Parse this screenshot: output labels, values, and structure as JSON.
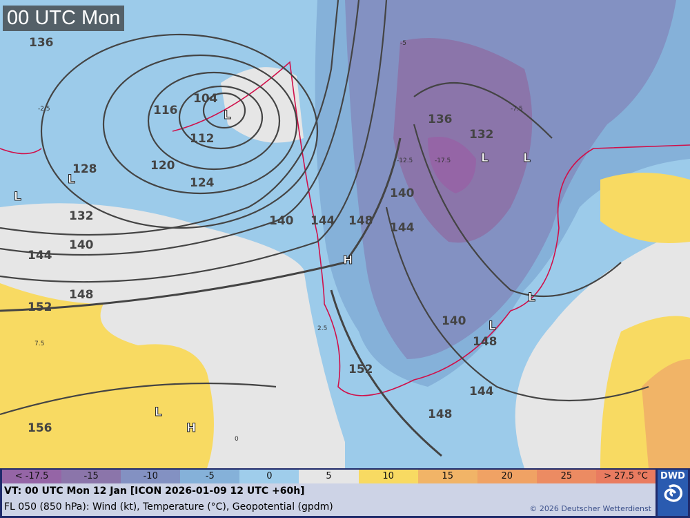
{
  "map": {
    "time_title": "00 UTC Mon",
    "contour_labels": [
      "136",
      "104",
      "112",
      "116",
      "120",
      "124",
      "128",
      "132",
      "140",
      "144",
      "148",
      "152",
      "156",
      "136",
      "132",
      "140",
      "144",
      "148",
      "140",
      "144",
      "152",
      "148",
      "144",
      "148",
      "140"
    ],
    "pressure_centers": [
      "L",
      "L",
      "L",
      "L",
      "L",
      "H",
      "L",
      "L",
      "H",
      "L"
    ],
    "temperature_labels": [
      "-2.5",
      "-7.5",
      "-12.5",
      "-17.5",
      "2.5",
      "7.5",
      "-5",
      "0"
    ]
  },
  "legend": {
    "items": [
      {
        "label": "< -17.5",
        "color": "#9565a6"
      },
      {
        "label": "-15",
        "color": "#8b75aa"
      },
      {
        "label": "-10",
        "color": "#8391c2"
      },
      {
        "label": "-5",
        "color": "#85b1d9"
      },
      {
        "label": "0",
        "color": "#9fcdeb"
      },
      {
        "label": "5",
        "color": "#e6e6e6"
      },
      {
        "label": "10",
        "color": "#f8da62"
      },
      {
        "label": "15",
        "color": "#f1b467"
      },
      {
        "label": "20",
        "color": "#f0a264"
      },
      {
        "label": "25",
        "color": "#ec8b62"
      },
      {
        "label": "> 27.5 °C",
        "color": "#e97b60"
      }
    ]
  },
  "footer": {
    "valid_time": "VT: 00 UTC Mon  12 Jan [ICON 2026-01-09 12 UTC +60h]",
    "description": "FL 050 (850 hPa): Wind (kt), Temperature (°C), Geopotential (gpdm)",
    "copyright": "© 2026 Deutscher Wetterdienst"
  },
  "logo": {
    "text": "DWD"
  }
}
